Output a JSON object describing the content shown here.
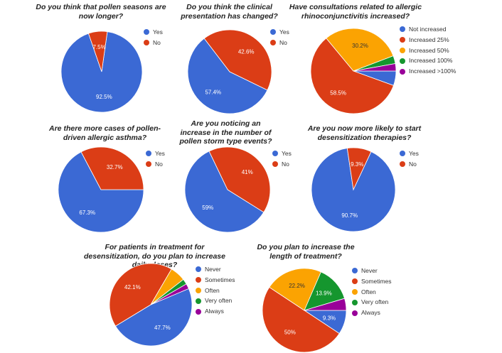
{
  "colors": {
    "blue": "#3b69d4",
    "red": "#db3d16",
    "orange": "#fba302",
    "green": "#15962e",
    "purple": "#990099"
  },
  "chart_data": [
    {
      "type": "pie",
      "title": "Do you think that pollen seasons are now longer?",
      "categories": [
        "Yes",
        "No"
      ],
      "values": [
        92.5,
        7.5
      ],
      "labels": [
        "92.5%",
        "7.5%"
      ],
      "colors": [
        "#3b69d4",
        "#db3d16"
      ],
      "legend": "right"
    },
    {
      "type": "pie",
      "title": "Do you think the clinical presentation has changed?",
      "categories": [
        "Yes",
        "No"
      ],
      "values": [
        57.4,
        42.6
      ],
      "labels": [
        "57.4%",
        "42.6%"
      ],
      "colors": [
        "#3b69d4",
        "#db3d16"
      ],
      "legend": "right"
    },
    {
      "type": "pie",
      "title": "Have consultations related to allergic rhinoconjunctivitis increased?",
      "categories": [
        "Not increased",
        "Increased 25%",
        "Increased 50%",
        "Increased 100%",
        "Increased >100%"
      ],
      "values": [
        5.5,
        58.5,
        30.2,
        3.0,
        2.8
      ],
      "labels": [
        "",
        "58.5%",
        "30.2%",
        "",
        ""
      ],
      "colors": [
        "#3b69d4",
        "#db3d16",
        "#fba302",
        "#15962e",
        "#990099"
      ],
      "legend": "right"
    },
    {
      "type": "pie",
      "title": "Are there more cases of pollen-driven allergic asthma?",
      "categories": [
        "Yes",
        "No"
      ],
      "values": [
        67.3,
        32.7
      ],
      "labels": [
        "67.3%",
        "32.7%"
      ],
      "colors": [
        "#3b69d4",
        "#db3d16"
      ],
      "legend": "right"
    },
    {
      "type": "pie",
      "title": "Are you noticing an increase in the number of pollen storm type events?",
      "categories": [
        "Yes",
        "No"
      ],
      "values": [
        59,
        41
      ],
      "labels": [
        "59%",
        "41%"
      ],
      "colors": [
        "#3b69d4",
        "#db3d16"
      ],
      "legend": "right"
    },
    {
      "type": "pie",
      "title": "Are you now more likely to start desensitization therapies?",
      "categories": [
        "Yes",
        "No"
      ],
      "values": [
        90.7,
        9.3
      ],
      "labels": [
        "90.7%",
        "9.3%"
      ],
      "colors": [
        "#3b69d4",
        "#db3d16"
      ],
      "legend": "right"
    },
    {
      "type": "pie",
      "title": "For patients in treatment for desensitization, do you plan to increase daily doses?",
      "categories": [
        "Never",
        "Sometimes",
        "Often",
        "Very often",
        "Always"
      ],
      "values": [
        47.7,
        42.1,
        6.1,
        2.1,
        2.0
      ],
      "labels": [
        "47.7%",
        "42.1%",
        "",
        "",
        ""
      ],
      "colors": [
        "#3b69d4",
        "#db3d16",
        "#fba302",
        "#15962e",
        "#990099"
      ],
      "legend": "right"
    },
    {
      "type": "pie",
      "title": "Do you plan to increase the length of treatment?",
      "categories": [
        "Never",
        "Sometimes",
        "Often",
        "Very often",
        "Always"
      ],
      "values": [
        9.3,
        50,
        22.2,
        13.9,
        4.6
      ],
      "labels": [
        "9.3%",
        "50%",
        "22.2%",
        "13.9%",
        ""
      ],
      "colors": [
        "#3b69d4",
        "#db3d16",
        "#fba302",
        "#15962e",
        "#990099"
      ],
      "legend": "right"
    }
  ]
}
